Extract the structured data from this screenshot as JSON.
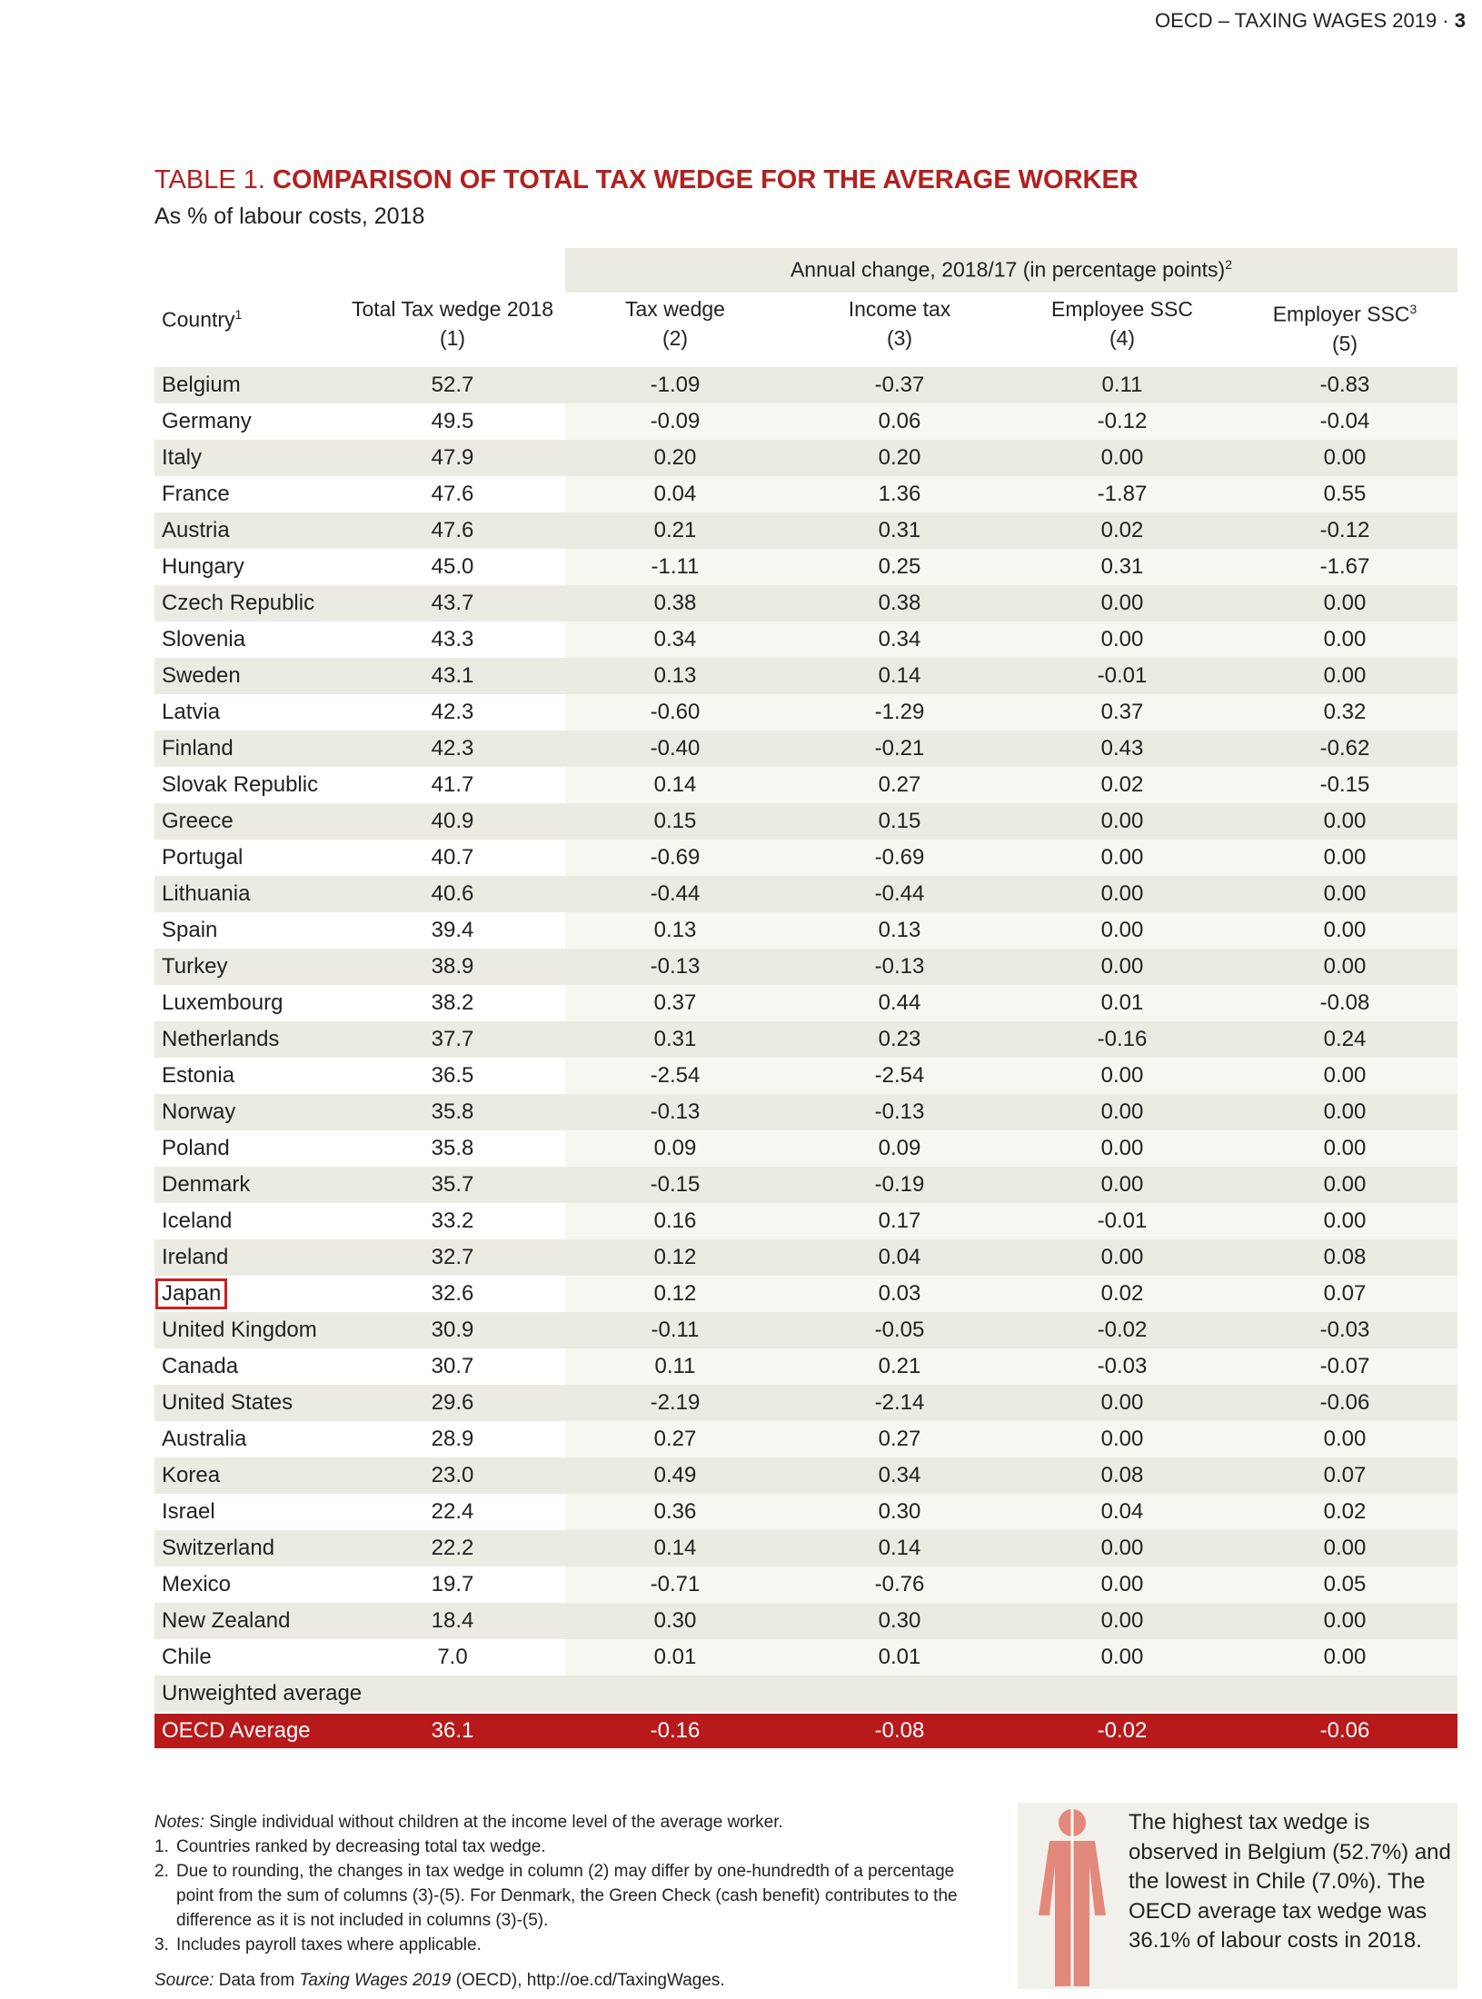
{
  "header": {
    "running_title": "OECD – TAXING WAGES 2019 · ",
    "page": "3"
  },
  "title": {
    "label": "TABLE 1. ",
    "text": "COMPARISON OF TOTAL TAX WEDGE FOR THE AVERAGE WORKER"
  },
  "subtitle": "As % of labour costs, 2018",
  "table": {
    "group_header": {
      "text": "Annual change, 2018/17 (in percentage points)",
      "note": "2"
    },
    "columns": [
      {
        "label": "Country",
        "note": "1"
      },
      {
        "label": "Total Tax wedge 2018",
        "number": "(1)"
      },
      {
        "label": "Tax wedge",
        "number": "(2)"
      },
      {
        "label": "Income tax",
        "number": "(3)"
      },
      {
        "label": "Employee SSC",
        "number": "(4)"
      },
      {
        "label": "Employer SSC",
        "note": "3",
        "number": "(5)"
      }
    ],
    "rows": [
      [
        "Belgium",
        "52.7",
        "-1.09",
        "-0.37",
        "0.11",
        "-0.83"
      ],
      [
        "Germany",
        "49.5",
        "-0.09",
        "0.06",
        "-0.12",
        "-0.04"
      ],
      [
        "Italy",
        "47.9",
        "0.20",
        "0.20",
        "0.00",
        "0.00"
      ],
      [
        "France",
        "47.6",
        "0.04",
        "1.36",
        "-1.87",
        "0.55"
      ],
      [
        "Austria",
        "47.6",
        "0.21",
        "0.31",
        "0.02",
        "-0.12"
      ],
      [
        "Hungary",
        "45.0",
        "-1.11",
        "0.25",
        "0.31",
        "-1.67"
      ],
      [
        "Czech Republic",
        "43.7",
        "0.38",
        "0.38",
        "0.00",
        "0.00"
      ],
      [
        "Slovenia",
        "43.3",
        "0.34",
        "0.34",
        "0.00",
        "0.00"
      ],
      [
        "Sweden",
        "43.1",
        "0.13",
        "0.14",
        "-0.01",
        "0.00"
      ],
      [
        "Latvia",
        "42.3",
        "-0.60",
        "-1.29",
        "0.37",
        "0.32"
      ],
      [
        "Finland",
        "42.3",
        "-0.40",
        "-0.21",
        "0.43",
        "-0.62"
      ],
      [
        "Slovak Republic",
        "41.7",
        "0.14",
        "0.27",
        "0.02",
        "-0.15"
      ],
      [
        "Greece",
        "40.9",
        "0.15",
        "0.15",
        "0.00",
        "0.00"
      ],
      [
        "Portugal",
        "40.7",
        "-0.69",
        "-0.69",
        "0.00",
        "0.00"
      ],
      [
        "Lithuania",
        "40.6",
        "-0.44",
        "-0.44",
        "0.00",
        "0.00"
      ],
      [
        "Spain",
        "39.4",
        "0.13",
        "0.13",
        "0.00",
        "0.00"
      ],
      [
        "Turkey",
        "38.9",
        "-0.13",
        "-0.13",
        "0.00",
        "0.00"
      ],
      [
        "Luxembourg",
        "38.2",
        "0.37",
        "0.44",
        "0.01",
        "-0.08"
      ],
      [
        "Netherlands",
        "37.7",
        "0.31",
        "0.23",
        "-0.16",
        "0.24"
      ],
      [
        "Estonia",
        "36.5",
        "-2.54",
        "-2.54",
        "0.00",
        "0.00"
      ],
      [
        "Norway",
        "35.8",
        "-0.13",
        "-0.13",
        "0.00",
        "0.00"
      ],
      [
        "Poland",
        "35.8",
        "0.09",
        "0.09",
        "0.00",
        "0.00"
      ],
      [
        "Denmark",
        "35.7",
        "-0.15",
        "-0.19",
        "0.00",
        "0.00"
      ],
      [
        "Iceland",
        "33.2",
        "0.16",
        "0.17",
        "-0.01",
        "0.00"
      ],
      [
        "Ireland",
        "32.7",
        "0.12",
        "0.04",
        "0.00",
        "0.08"
      ],
      [
        "Japan",
        "32.6",
        "0.12",
        "0.03",
        "0.02",
        "0.07"
      ],
      [
        "United Kingdom",
        "30.9",
        "-0.11",
        "-0.05",
        "-0.02",
        "-0.03"
      ],
      [
        "Canada",
        "30.7",
        "0.11",
        "0.21",
        "-0.03",
        "-0.07"
      ],
      [
        "United States",
        "29.6",
        "-2.19",
        "-2.14",
        "0.00",
        "-0.06"
      ],
      [
        "Australia",
        "28.9",
        "0.27",
        "0.27",
        "0.00",
        "0.00"
      ],
      [
        "Korea",
        "23.0",
        "0.49",
        "0.34",
        "0.08",
        "0.07"
      ],
      [
        "Israel",
        "22.4",
        "0.36",
        "0.30",
        "0.04",
        "0.02"
      ],
      [
        "Switzerland",
        "22.2",
        "0.14",
        "0.14",
        "0.00",
        "0.00"
      ],
      [
        "Mexico",
        "19.7",
        "-0.71",
        "-0.76",
        "0.00",
        "0.05"
      ],
      [
        "New Zealand",
        "18.4",
        "0.30",
        "0.30",
        "0.00",
        "0.00"
      ],
      [
        "Chile",
        "7.0",
        "0.01",
        "0.01",
        "0.00",
        "0.00"
      ]
    ],
    "highlighted_row": 25,
    "average_label": "Unweighted average",
    "average_row": [
      "OECD Average",
      "36.1",
      "-0.16",
      "-0.08",
      "-0.02",
      "-0.06"
    ]
  },
  "notes": {
    "label": "Notes:",
    "intro": " Single individual without children at the income level of the average worker.",
    "items": [
      {
        "number": "1.",
        "text": "Countries ranked by decreasing total tax wedge."
      },
      {
        "number": "2.",
        "text": "Due to rounding, the changes in tax wedge in column (2) may differ by one-hundredth of a percentage point from the sum of columns (3)-(5). For Denmark, the Green Check (cash benefit) contributes to the difference as it is not included in columns (3)-(5)."
      },
      {
        "number": "3.",
        "text": "Includes payroll taxes where applicable."
      }
    ]
  },
  "source": {
    "label": "Source:",
    "before": " Data from ",
    "publication": "Taxing Wages 2019",
    "after": " (OECD), http://oe.cd/TaxingWages."
  },
  "callout": "The highest tax wedge is observed in Belgium (52.7%) and the lowest in Chile (7.0%). The OECD average tax wedge was 36.1% of labour costs in 2018."
}
